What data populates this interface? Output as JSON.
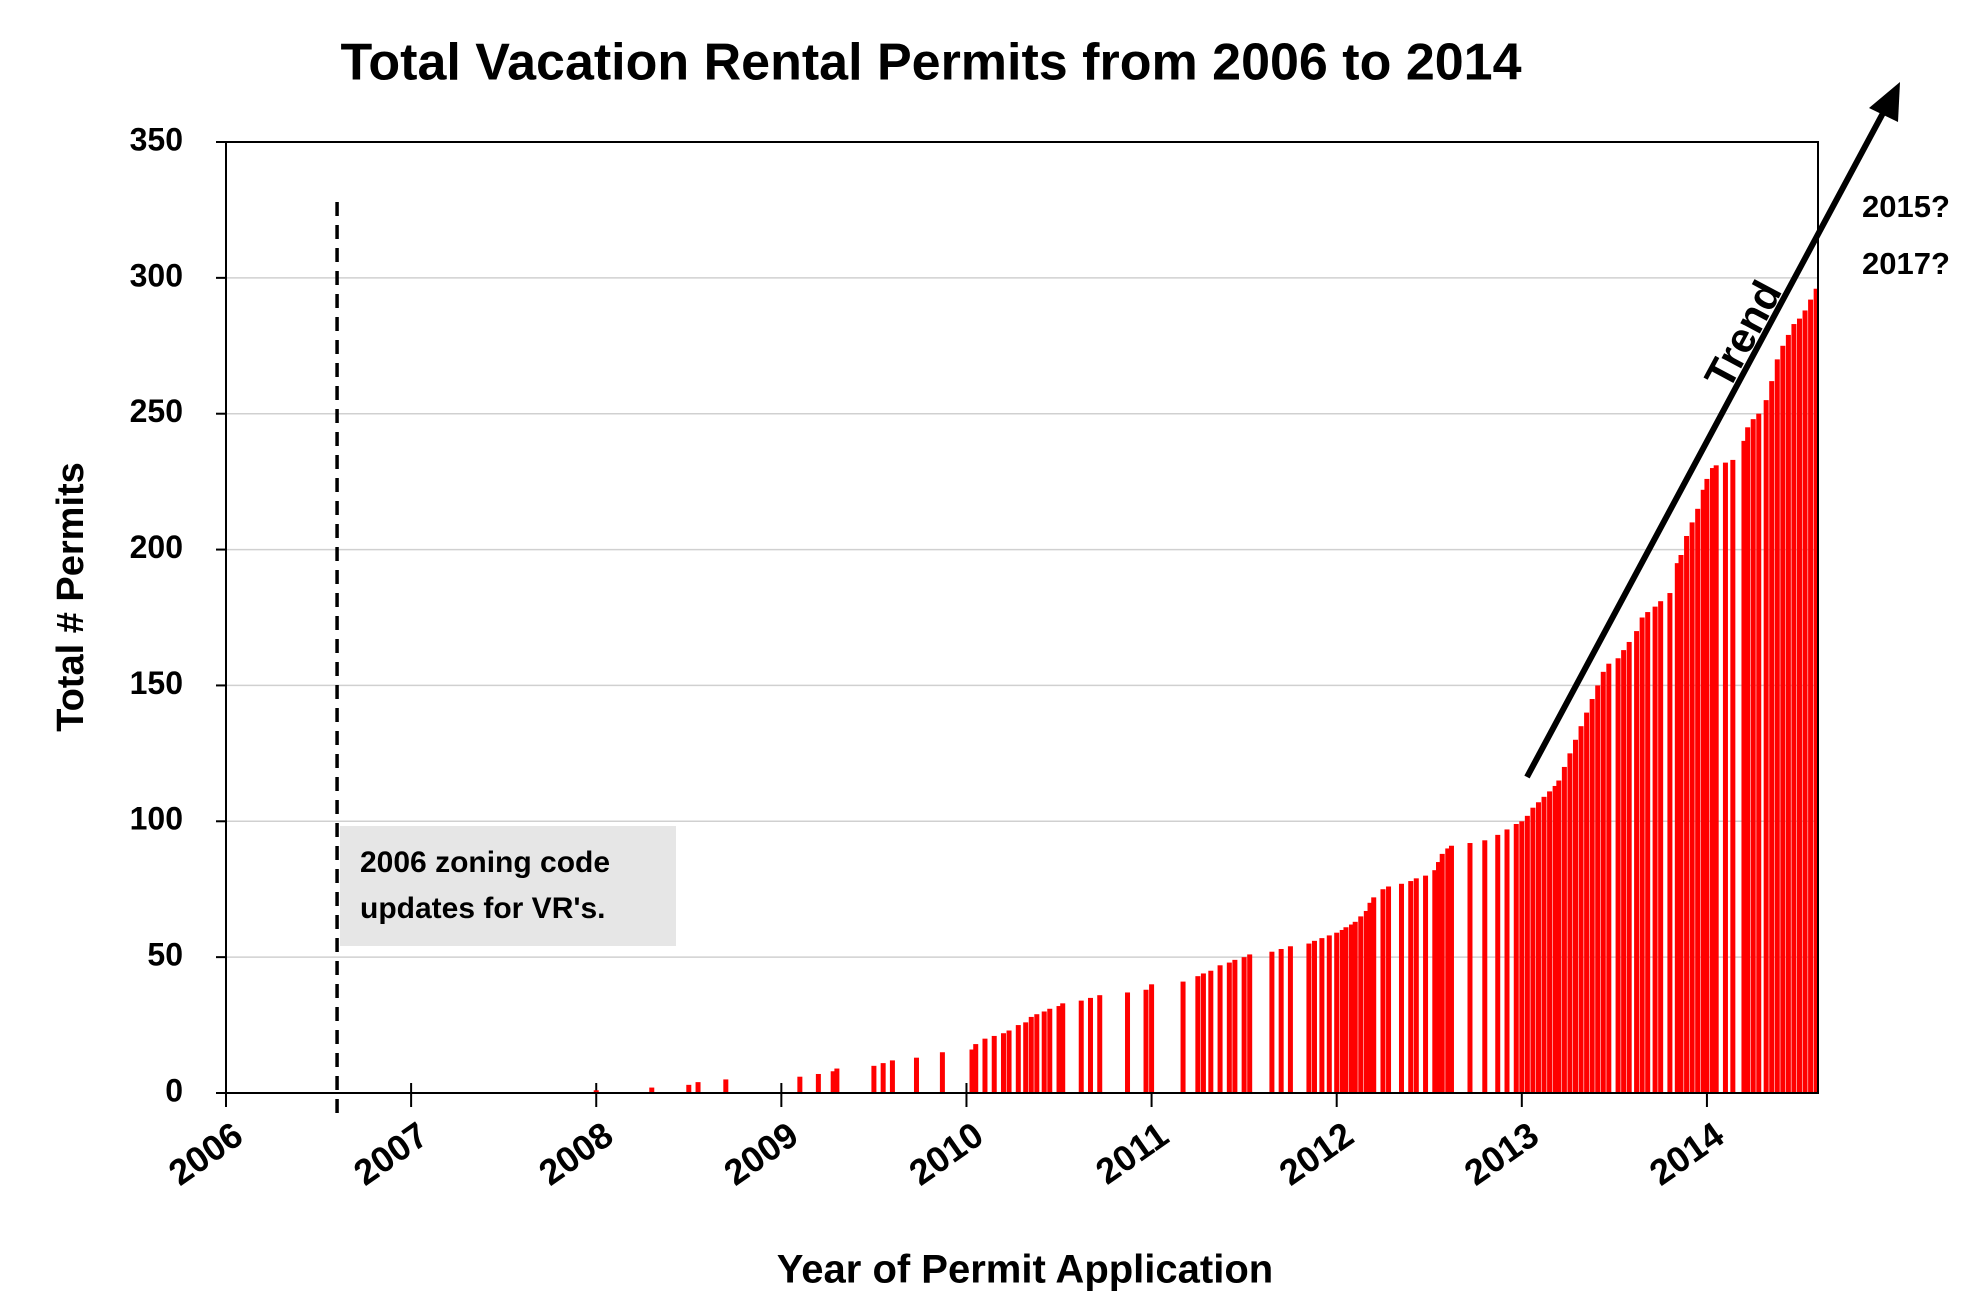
{
  "chart_data": {
    "type": "bar",
    "title": "Total Vacation Rental Permits from 2006 to 2014",
    "x_label": "Year of Permit Application",
    "y_label": "Total # Permits",
    "color": "#ff0000",
    "x": [
      2008.0,
      2008.3,
      2008.5,
      2008.55,
      2008.7,
      2009.1,
      2009.2,
      2009.28,
      2009.3,
      2009.5,
      2009.55,
      2009.6,
      2009.73,
      2009.87,
      2010.03,
      2010.05,
      2010.1,
      2010.15,
      2010.2,
      2010.23,
      2010.28,
      2010.32,
      2010.35,
      2010.38,
      2010.42,
      2010.45,
      2010.5,
      2010.52,
      2010.62,
      2010.67,
      2010.72,
      2010.87,
      2010.97,
      2011.0,
      2011.17,
      2011.25,
      2011.28,
      2011.32,
      2011.37,
      2011.42,
      2011.45,
      2011.5,
      2011.53,
      2011.65,
      2011.7,
      2011.75,
      2011.85,
      2011.88,
      2011.92,
      2011.96,
      2012.0,
      2012.03,
      2012.05,
      2012.08,
      2012.1,
      2012.13,
      2012.16,
      2012.18,
      2012.2,
      2012.25,
      2012.28,
      2012.35,
      2012.4,
      2012.43,
      2012.48,
      2012.53,
      2012.55,
      2012.57,
      2012.6,
      2012.62,
      2012.72,
      2012.8,
      2012.87,
      2012.92,
      2012.97,
      2013.0,
      2013.03,
      2013.06,
      2013.09,
      2013.12,
      2013.15,
      2013.18,
      2013.2,
      2013.23,
      2013.26,
      2013.29,
      2013.32,
      2013.35,
      2013.38,
      2013.41,
      2013.44,
      2013.47,
      2013.52,
      2013.55,
      2013.58,
      2013.62,
      2013.65,
      2013.68,
      2013.72,
      2013.75,
      2013.8,
      2013.84,
      2013.86,
      2013.89,
      2013.92,
      2013.95,
      2013.98,
      2014.0,
      2014.03,
      2014.05,
      2014.1,
      2014.14,
      2014.2,
      2014.22,
      2014.25,
      2014.28,
      2014.32,
      2014.35,
      2014.38,
      2014.41,
      2014.44,
      2014.47,
      2014.5,
      2014.53,
      2014.56,
      2014.59
    ],
    "values": [
      1,
      2,
      3,
      4,
      5,
      6,
      7,
      8,
      9,
      10,
      11,
      12,
      13,
      15,
      16,
      18,
      20,
      21,
      22,
      23,
      25,
      26,
      28,
      29,
      30,
      31,
      32,
      33,
      34,
      35,
      36,
      37,
      38,
      40,
      41,
      43,
      44,
      45,
      47,
      48,
      49,
      50,
      51,
      52,
      53,
      54,
      55,
      56,
      57,
      58,
      59,
      60,
      61,
      62,
      63,
      65,
      67,
      70,
      72,
      75,
      76,
      77,
      78,
      79,
      80,
      82,
      85,
      88,
      90,
      91,
      92,
      93,
      95,
      97,
      99,
      100,
      102,
      105,
      107,
      109,
      111,
      113,
      115,
      120,
      125,
      130,
      135,
      140,
      145,
      150,
      155,
      158,
      160,
      163,
      166,
      170,
      175,
      177,
      179,
      181,
      184,
      195,
      198,
      205,
      210,
      215,
      222,
      226,
      230,
      231,
      232,
      233,
      240,
      245,
      248,
      250,
      255,
      262,
      270,
      275,
      279,
      283,
      285,
      288,
      292,
      296
    ],
    "xlim": [
      2006,
      2014.6
    ],
    "xticks": [
      2006,
      2007,
      2008,
      2009,
      2010,
      2011,
      2012,
      2013,
      2014
    ],
    "ylim": [
      0,
      350
    ],
    "yticks": [
      0,
      50,
      100,
      150,
      200,
      250,
      300,
      350
    ],
    "grid": true,
    "annotations": [
      {
        "text": "2006 zoning code updates for VR's.",
        "x": 2006.6
      },
      {
        "text": "Trend"
      },
      {
        "text": "2015?"
      },
      {
        "text": "2017?"
      }
    ]
  }
}
